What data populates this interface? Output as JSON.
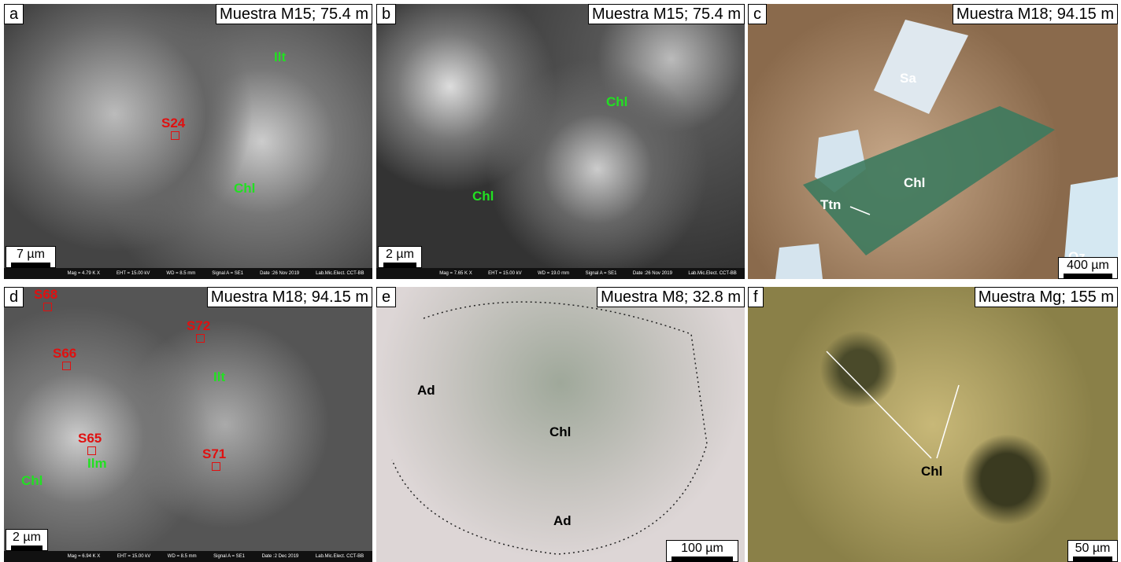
{
  "panels": [
    {
      "letter": "a",
      "title": "Muestra M15; 75.4 m",
      "labels": [
        "Ilt",
        "S24",
        "Chl"
      ],
      "scale": "7 µm",
      "footer": [
        "Mag = 4.79 K X",
        "EHT = 15.00 kV",
        "WD = 8.5 mm",
        "Signal A = SE1",
        "Date :26 Nov 2019",
        "Lab.Mic.Elect. CCT-BB"
      ]
    },
    {
      "letter": "b",
      "title": "Muestra M15; 75.4 m",
      "labels": [
        "Chl",
        "Chl"
      ],
      "scale": "2 µm",
      "footer": [
        "Mag = 7.65 K X",
        "EHT = 15.00 kV",
        "WD = 19.0 mm",
        "Signal A = SE1",
        "Date :26 Nov 2019",
        "Lab.Mic.Elect. CCT-BB"
      ]
    },
    {
      "letter": "c",
      "title": "Muestra M18; 94.15 m",
      "labels": [
        "Sa",
        "Chl",
        "Ttn",
        "Qz"
      ],
      "scale": "400 µm"
    },
    {
      "letter": "d",
      "title": "Muestra M18; 94.15 m",
      "labels": [
        "S68",
        "S66",
        "S72",
        "S65",
        "S71",
        "Ilt",
        "Ilm",
        "Chl"
      ],
      "scale": "2 µm",
      "footer": [
        "Mag = 6.94 K X",
        "EHT = 15.00 kV",
        "WD = 8.5 mm",
        "Signal A = SE1",
        "Date :2 Dec 2019",
        "Lab.Mic.Elect. CCT-BB"
      ]
    },
    {
      "letter": "e",
      "title": "Muestra M8; 32.8 m",
      "labels": [
        "Ad",
        "Chl",
        "Ad"
      ],
      "scale": "100 µm"
    },
    {
      "letter": "f",
      "title": "Muestra Mg; 155 m",
      "labels": [
        "Chl"
      ],
      "scale": "50 µm"
    }
  ]
}
